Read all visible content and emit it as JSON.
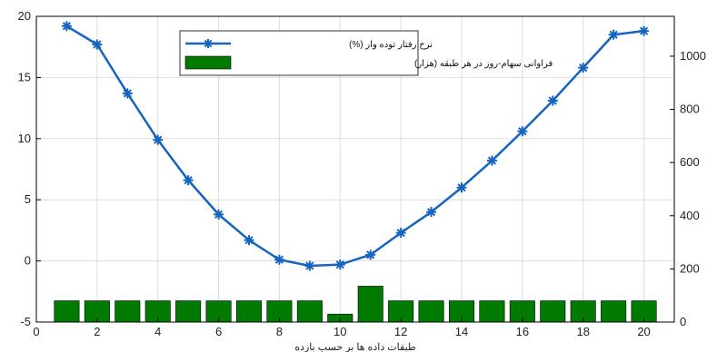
{
  "chart_data": {
    "type": "bar+line",
    "xlabel": "طبقات داده ها بر حسب بازده",
    "x_ticks": [
      "0",
      "2",
      "4",
      "6",
      "8",
      "10",
      "12",
      "14",
      "16",
      "18",
      "20"
    ],
    "xlim": [
      0,
      21
    ],
    "y_left_ticks": [
      "-5",
      "0",
      "5",
      "10",
      "15",
      "20"
    ],
    "ylim_left": [
      -5,
      20
    ],
    "y_right_ticks": [
      "0",
      "200",
      "400",
      "600",
      "800",
      "1000"
    ],
    "ylim_right": [
      0,
      1150
    ],
    "grid": true,
    "legend_position": "top-center",
    "line_series": {
      "name": "نرخ رفتار توده وار (%)",
      "axis": "left",
      "color": "#1565c0",
      "marker": "asterisk",
      "x": [
        1,
        2,
        3,
        4,
        5,
        6,
        7,
        8,
        9,
        10,
        11,
        12,
        13,
        14,
        15,
        16,
        17,
        18,
        19,
        20
      ],
      "y": [
        19.2,
        17.7,
        13.7,
        9.9,
        6.6,
        3.8,
        1.7,
        0.1,
        -0.4,
        -0.3,
        0.5,
        2.3,
        4.0,
        6.0,
        8.2,
        10.6,
        13.1,
        15.8,
        18.5,
        18.8
      ]
    },
    "bar_series": {
      "name": "فراوانی سهام-روز در هر طبقه (هزار)",
      "axis": "right",
      "color": "#007a00",
      "x": [
        1,
        2,
        3,
        4,
        5,
        6,
        7,
        8,
        9,
        10,
        11,
        12,
        13,
        14,
        15,
        16,
        17,
        18,
        19,
        20
      ],
      "y": [
        80,
        80,
        80,
        80,
        80,
        80,
        80,
        80,
        80,
        30,
        135,
        80,
        80,
        80,
        80,
        80,
        80,
        80,
        80,
        80
      ]
    }
  }
}
